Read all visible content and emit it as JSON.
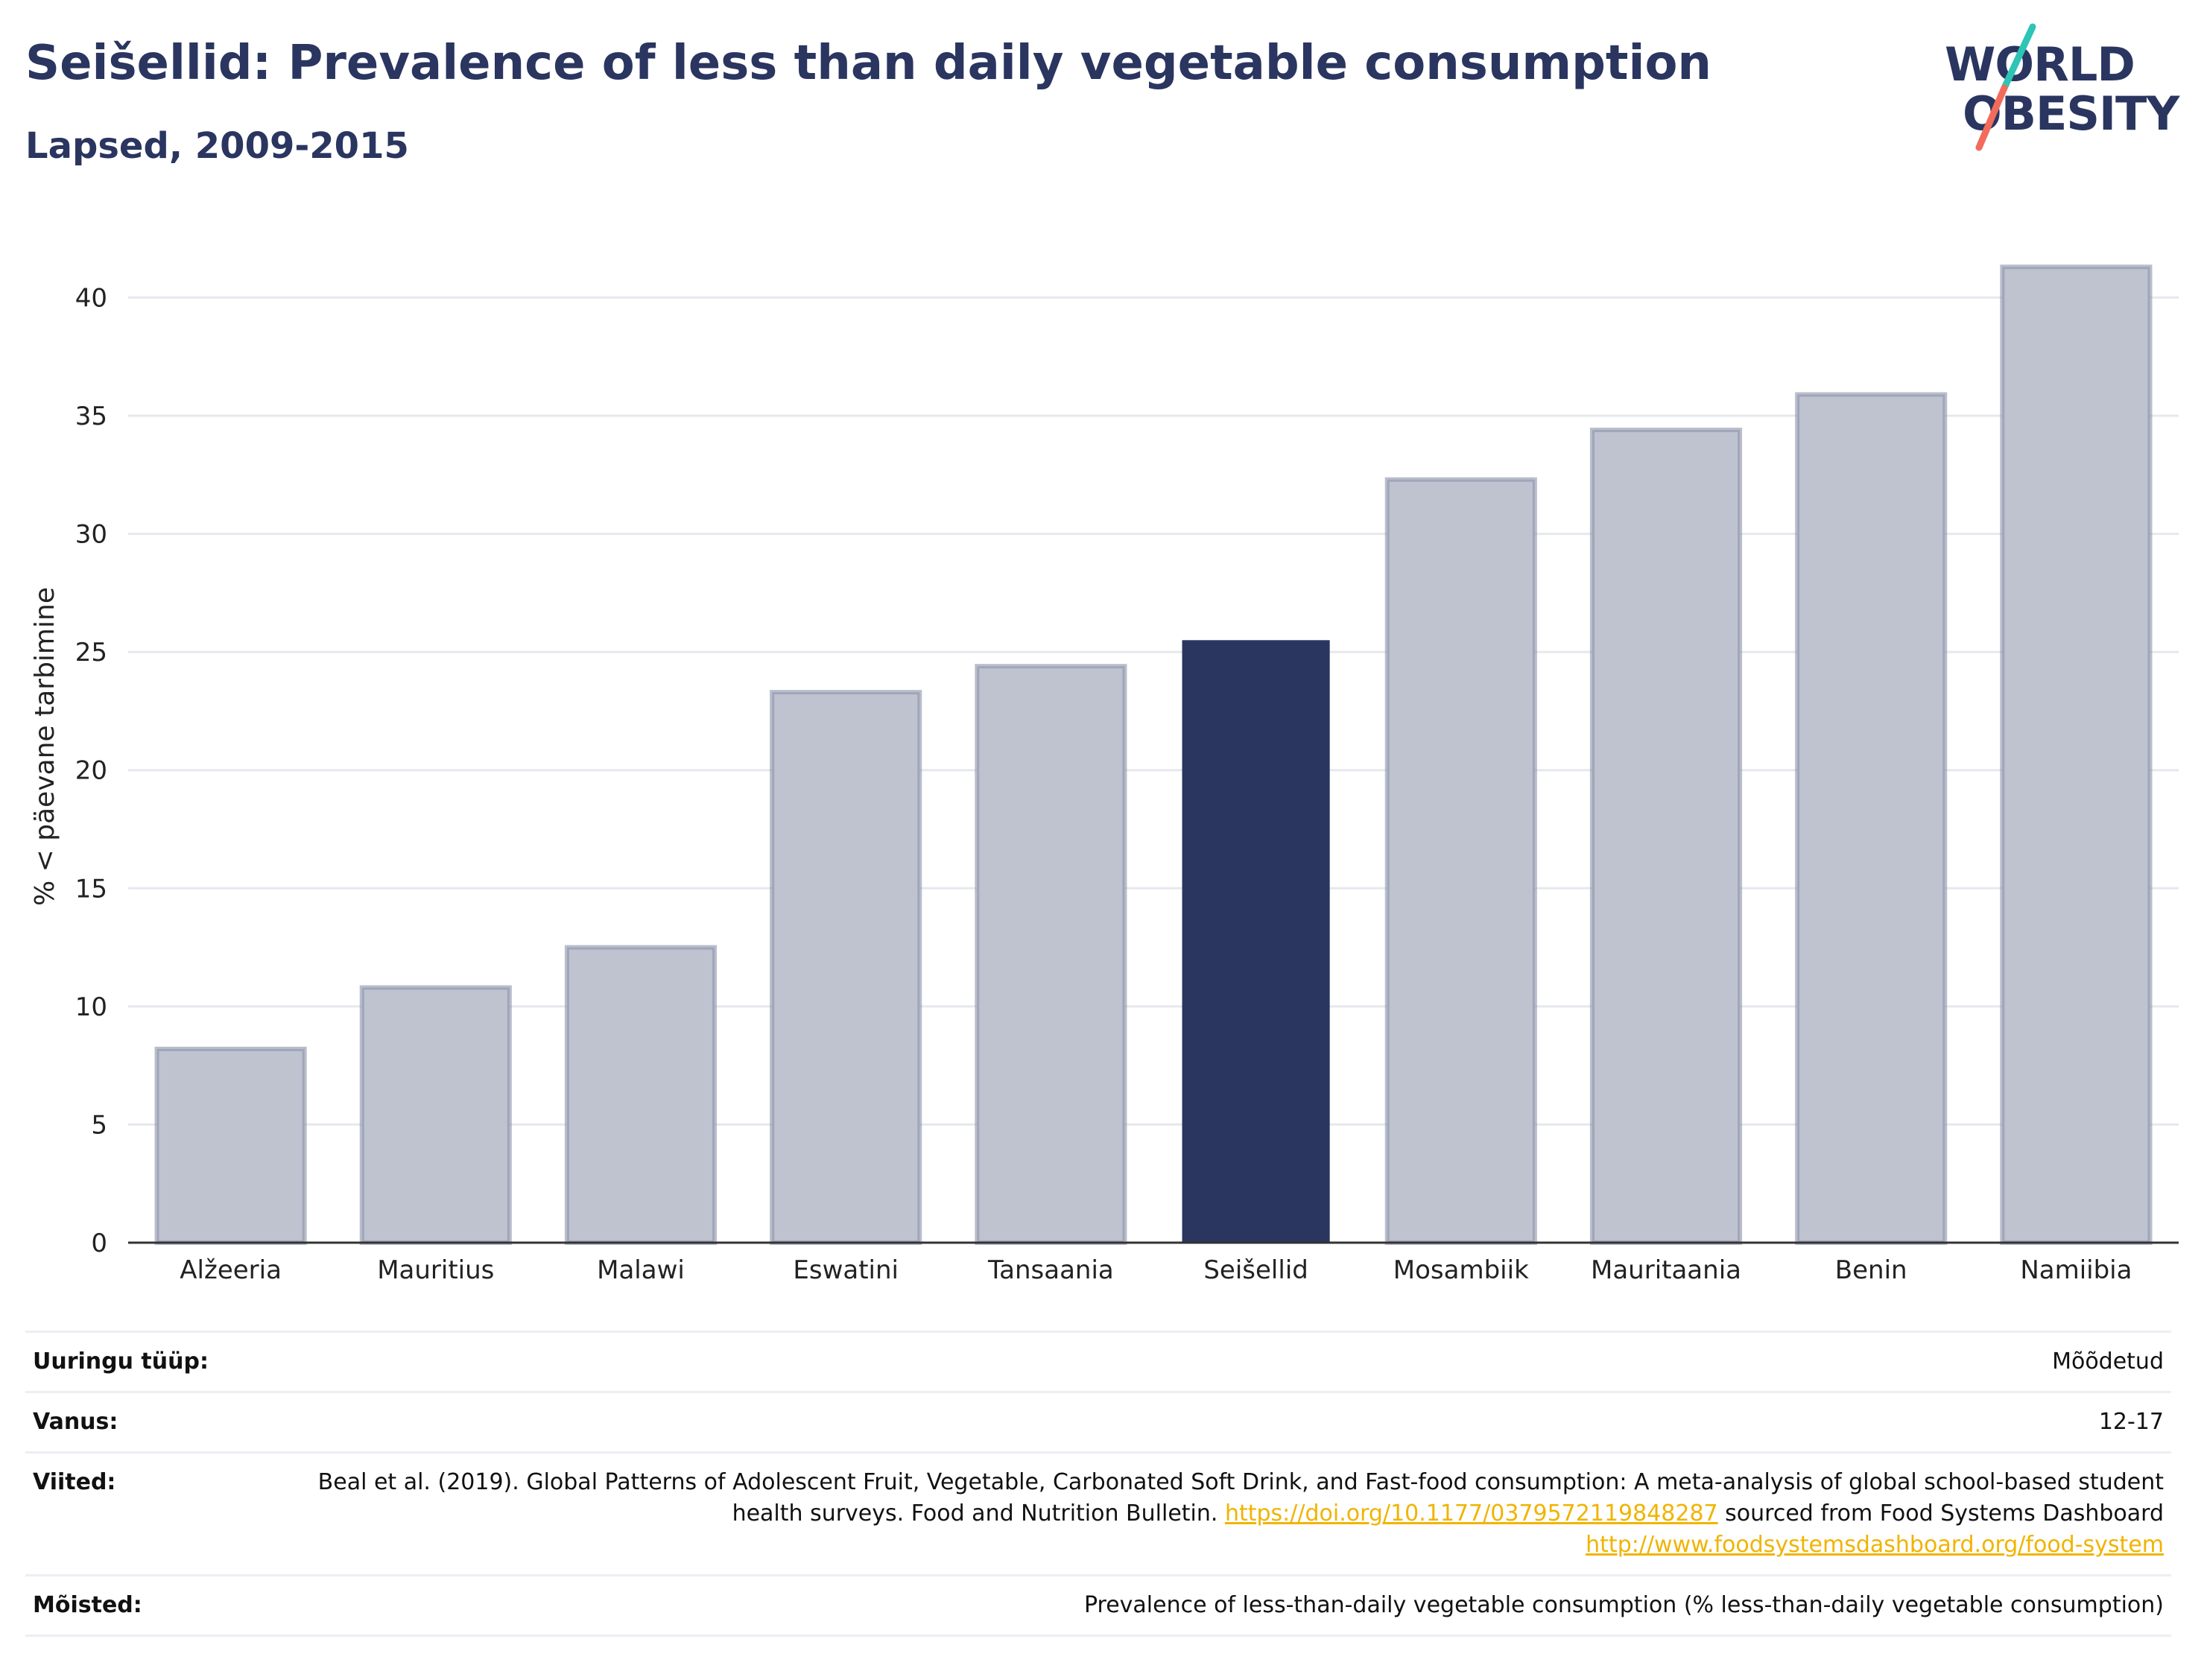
{
  "header": {
    "title": "Seišellid: Prevalence of less than daily vegetable consumption",
    "subtitle": "Lapsed, 2009-2015"
  },
  "logo": {
    "line1": "WORLD",
    "line2": "OBESITY",
    "colors": {
      "text": "#2a3560",
      "slash_top": "#2ec4b6",
      "slash_bottom": "#f26b5b"
    }
  },
  "colors": {
    "bar": "#bfc2cf",
    "bar_border": "#8c92aa",
    "highlight": "#2a3560",
    "grid": "#e6e8ee",
    "axis": "#333333"
  },
  "chart_data": {
    "type": "bar",
    "categories": [
      "Alžeeria",
      "Mauritius",
      "Malawi",
      "Eswatini",
      "Tansaania",
      "Seišellid",
      "Mosambiik",
      "Mauritaania",
      "Benin",
      "Namiibia"
    ],
    "values": [
      8.2,
      10.8,
      12.5,
      23.3,
      24.4,
      25.5,
      32.3,
      34.4,
      35.9,
      41.3
    ],
    "highlight": "Seišellid",
    "title": "Seišellid: Prevalence of less than daily vegetable consumption",
    "subtitle": "Lapsed, 2009-2015",
    "xlabel": "",
    "ylabel": "% < päevane tarbimine",
    "ylim": [
      0,
      42
    ],
    "yticks": [
      0,
      5,
      10,
      15,
      20,
      25,
      30,
      35,
      40
    ],
    "grid": true
  },
  "info": {
    "survey_label": "Uuringu tüüp:",
    "survey_value": "Mõõdetud",
    "age_label": "Vanus:",
    "age_value": "12-17",
    "refs_label": "Viited:",
    "refs_text1": "Beal et al. (2019). Global Patterns of Adolescent Fruit, Vegetable, Carbonated Soft Drink, and Fast-food consumption: A meta-analysis of global school-based student health surveys. Food and Nutrition Bulletin. ",
    "refs_link1": "https://doi.org/10.1177/0379572119848287",
    "refs_text2": " sourced from Food Systems Dashboard ",
    "refs_link2": "http://www.foodsystemsdashboard.org/food-system",
    "def_label": "Mõisted:",
    "def_value": "Prevalence of less-than-daily vegetable consumption (% less-than-daily vegetable consumption)"
  }
}
